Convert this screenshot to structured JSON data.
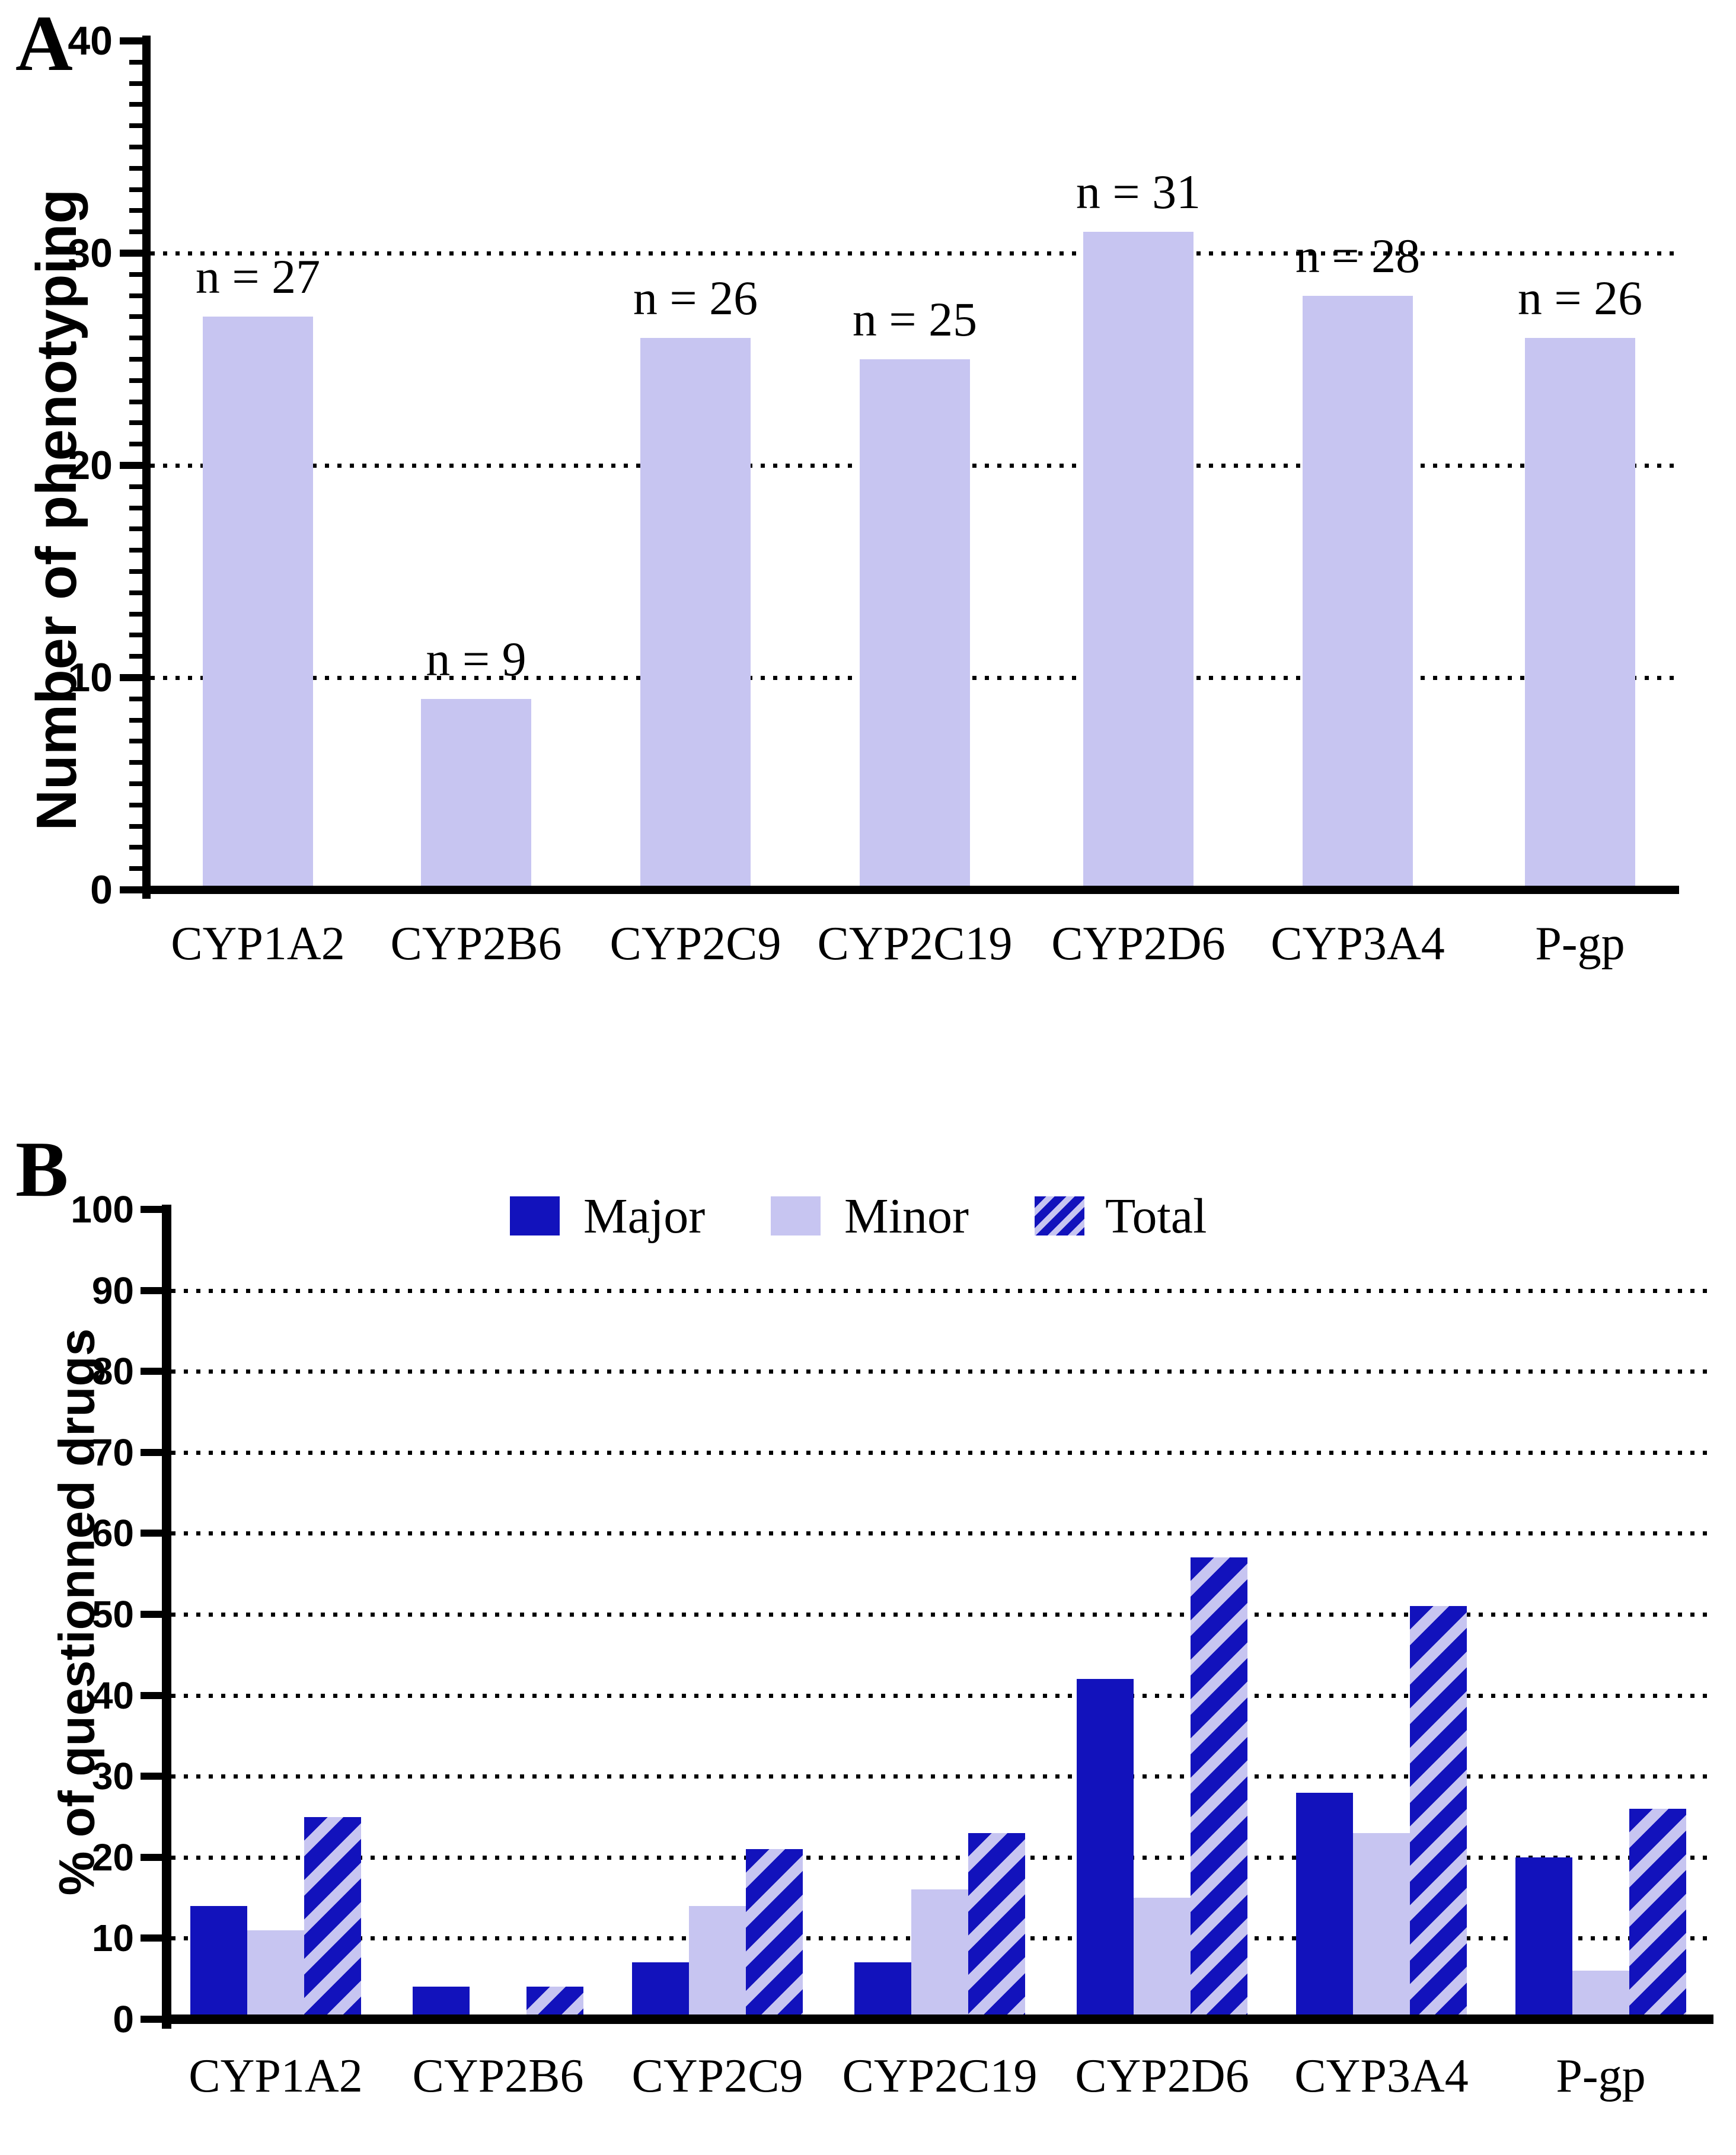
{
  "figure": {
    "panel_a_label": "A",
    "panel_b_label": "B"
  },
  "chart_data": [
    {
      "type": "bar",
      "panel": "A",
      "title": "",
      "ylabel": "Number of phenotyping",
      "xlabel": "",
      "ylim": [
        0,
        40
      ],
      "yticks": [
        0,
        10,
        20,
        30,
        40
      ],
      "gridlines": [
        10,
        20,
        30
      ],
      "grid": "dotted-horizontal",
      "minor_tick_every": 1,
      "legend_position": "none",
      "categories": [
        "CYP1A2",
        "CYP2B6",
        "CYP2C9",
        "CYP2C19",
        "CYP2D6",
        "CYP3A4",
        "P-gp"
      ],
      "values": [
        27,
        9,
        26,
        25,
        31,
        28,
        26
      ],
      "bar_labels": [
        "n = 27",
        "n = 9",
        "n = 26",
        "n = 25",
        "n = 31",
        "n = 28",
        "n = 26"
      ],
      "bar_color": "#c7c5f1"
    },
    {
      "type": "bar",
      "panel": "B",
      "title": "",
      "ylabel": "% of questionned drugs",
      "xlabel": "",
      "ylim": [
        0,
        100
      ],
      "yticks": [
        0,
        10,
        20,
        30,
        40,
        50,
        60,
        70,
        80,
        90,
        100
      ],
      "gridlines": [
        10,
        20,
        30,
        40,
        50,
        60,
        70,
        80,
        90
      ],
      "grid": "dotted-horizontal",
      "legend_position": "top",
      "categories": [
        "CYP1A2",
        "CYP2B6",
        "CYP2C9",
        "CYP2C19",
        "CYP2D6",
        "CYP3A4",
        "P-gp"
      ],
      "series": [
        {
          "name": "Major",
          "pattern": "solid",
          "color": "#1212bc",
          "values": [
            14,
            4,
            7,
            7,
            42,
            28,
            20
          ]
        },
        {
          "name": "Minor",
          "pattern": "solid",
          "color": "#c7c5f1",
          "values": [
            11,
            0,
            14,
            16,
            15,
            23,
            6
          ]
        },
        {
          "name": "Total",
          "pattern": "hatched",
          "color": "#1212bc",
          "hatch_color": "#c7c5f1",
          "values": [
            25,
            4,
            21,
            23,
            57,
            51,
            26
          ]
        }
      ]
    }
  ]
}
